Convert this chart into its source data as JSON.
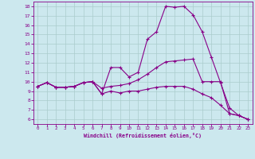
{
  "background_color": "#cce8ee",
  "line_color": "#880088",
  "grid_color": "#aacccc",
  "xlabel": "Windchill (Refroidissement éolien,°C)",
  "xlim": [
    -0.5,
    23.5
  ],
  "ylim": [
    5.5,
    18.5
  ],
  "xticks": [
    0,
    1,
    2,
    3,
    4,
    5,
    6,
    7,
    8,
    9,
    10,
    11,
    12,
    13,
    14,
    15,
    16,
    17,
    18,
    19,
    20,
    21,
    22,
    23
  ],
  "yticks": [
    6,
    7,
    8,
    9,
    10,
    11,
    12,
    13,
    14,
    15,
    16,
    17,
    18
  ],
  "series1": [
    [
      0,
      9.5
    ],
    [
      1,
      9.9
    ],
    [
      2,
      9.4
    ],
    [
      3,
      9.4
    ],
    [
      4,
      9.5
    ],
    [
      5,
      9.9
    ],
    [
      6,
      10.0
    ],
    [
      7,
      8.7
    ],
    [
      8,
      11.5
    ],
    [
      9,
      11.5
    ],
    [
      10,
      10.5
    ],
    [
      11,
      11.0
    ],
    [
      12,
      14.5
    ],
    [
      13,
      15.3
    ],
    [
      14,
      18.0
    ],
    [
      15,
      17.9
    ],
    [
      16,
      18.0
    ],
    [
      17,
      17.1
    ],
    [
      18,
      15.3
    ],
    [
      19,
      12.6
    ],
    [
      20,
      9.9
    ],
    [
      21,
      7.2
    ],
    [
      22,
      6.4
    ],
    [
      23,
      6.0
    ]
  ],
  "series2": [
    [
      0,
      9.5
    ],
    [
      1,
      9.9
    ],
    [
      2,
      9.4
    ],
    [
      3,
      9.4
    ],
    [
      4,
      9.5
    ],
    [
      5,
      9.9
    ],
    [
      6,
      10.0
    ],
    [
      7,
      9.3
    ],
    [
      8,
      9.5
    ],
    [
      9,
      9.6
    ],
    [
      10,
      9.8
    ],
    [
      11,
      10.2
    ],
    [
      12,
      10.8
    ],
    [
      13,
      11.5
    ],
    [
      14,
      12.1
    ],
    [
      15,
      12.2
    ],
    [
      16,
      12.3
    ],
    [
      17,
      12.4
    ],
    [
      18,
      10.0
    ],
    [
      19,
      10.0
    ],
    [
      20,
      10.0
    ],
    [
      21,
      6.6
    ],
    [
      22,
      6.4
    ],
    [
      23,
      6.0
    ]
  ],
  "series3": [
    [
      0,
      9.5
    ],
    [
      1,
      9.9
    ],
    [
      2,
      9.4
    ],
    [
      3,
      9.4
    ],
    [
      4,
      9.5
    ],
    [
      5,
      9.9
    ],
    [
      6,
      10.0
    ],
    [
      7,
      8.7
    ],
    [
      8,
      9.0
    ],
    [
      9,
      8.8
    ],
    [
      10,
      9.0
    ],
    [
      11,
      9.0
    ],
    [
      12,
      9.2
    ],
    [
      13,
      9.4
    ],
    [
      14,
      9.5
    ],
    [
      15,
      9.5
    ],
    [
      16,
      9.5
    ],
    [
      17,
      9.2
    ],
    [
      18,
      8.7
    ],
    [
      19,
      8.3
    ],
    [
      20,
      7.5
    ],
    [
      21,
      6.6
    ],
    [
      22,
      6.4
    ],
    [
      23,
      6.0
    ]
  ]
}
